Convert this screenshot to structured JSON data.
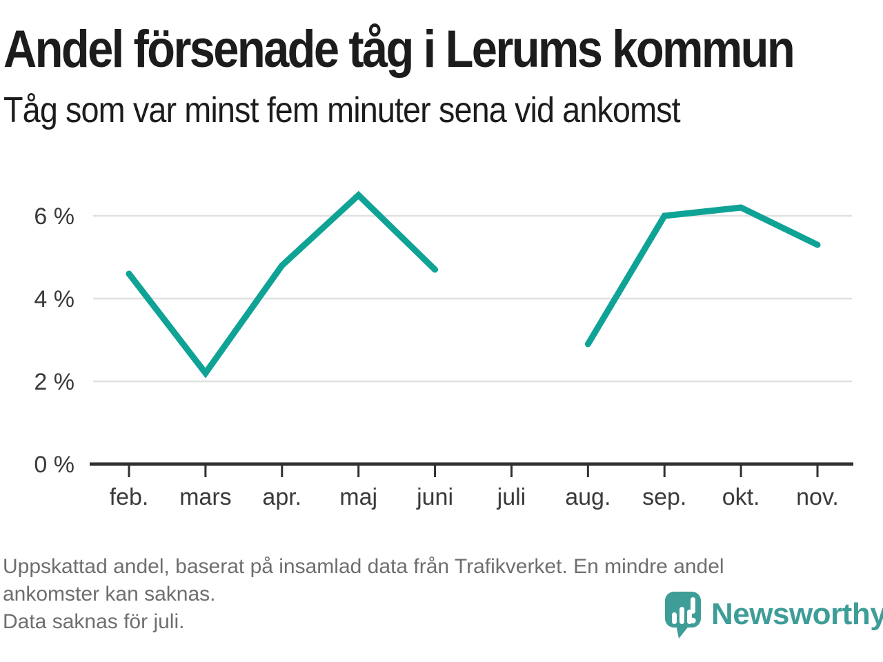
{
  "header": {
    "title": "Andel försenade tåg i Lerums kommun",
    "subtitle": "Tåg som var minst fem minuter sena vid ankomst"
  },
  "chart_data": {
    "type": "line",
    "title": "Andel försenade tåg i Lerums kommun",
    "subtitle": "Tåg som var minst fem minuter sena vid ankomst",
    "categories": [
      "feb.",
      "mars",
      "apr.",
      "maj",
      "juni",
      "juli",
      "aug.",
      "sep.",
      "okt.",
      "nov."
    ],
    "series": [
      {
        "name": "Andel försenade tåg (%)",
        "values": [
          4.6,
          2.2,
          4.8,
          6.5,
          4.7,
          null,
          2.9,
          6.0,
          6.2,
          5.3
        ]
      }
    ],
    "xlabel": "",
    "ylabel": "",
    "yticks": [
      0,
      2,
      4,
      6
    ],
    "ytick_labels": [
      "0 %",
      "2 %",
      "4 %",
      "6 %"
    ],
    "ylim": [
      0,
      7.2
    ],
    "grid": "horizontal",
    "legend": "none",
    "line_color": "#0fa396",
    "gridline_color": "#e0e0e0",
    "axis_color": "#303030",
    "tick_label_color": "#3a3a3a",
    "missing_data": "juli"
  },
  "footer": {
    "note_lines": [
      "Uppskattad andel, baserat på insamlad data från Trafikverket. En mindre andel",
      "ankomster kan saknas.",
      "Data saknas för juli."
    ],
    "logo": {
      "text": "Newsworthy",
      "icon": "newsworthy-speech-bubble-bar-chart-icon",
      "color": "#3f9d98"
    }
  }
}
